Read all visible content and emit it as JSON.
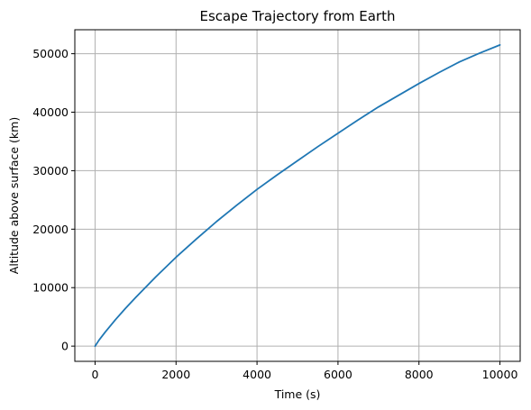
{
  "chart_data": {
    "type": "line",
    "title": "Escape Trajectory from Earth",
    "xlabel": "Time (s)",
    "ylabel": "Altitude above surface (km)",
    "xlim": [
      -500,
      10500
    ],
    "ylim": [
      -2600,
      54100
    ],
    "xticks": [
      0,
      2000,
      4000,
      6000,
      8000,
      10000
    ],
    "yticks": [
      0,
      10000,
      20000,
      30000,
      40000,
      50000
    ],
    "grid": true,
    "series": [
      {
        "color": "#1f77b4",
        "x": [
          0,
          100,
          250,
          500,
          750,
          1000,
          1500,
          2000,
          2500,
          3000,
          3500,
          4000,
          4500,
          5000,
          5500,
          6000,
          6500,
          7000,
          7500,
          8000,
          8500,
          9000,
          9500,
          10000
        ],
        "y": [
          0,
          1050,
          2400,
          4500,
          6450,
          8300,
          11850,
          15200,
          18300,
          21300,
          24100,
          26800,
          29300,
          31700,
          34100,
          36400,
          38700,
          40900,
          42900,
          44900,
          46800,
          48600,
          50100,
          51500
        ]
      }
    ]
  }
}
